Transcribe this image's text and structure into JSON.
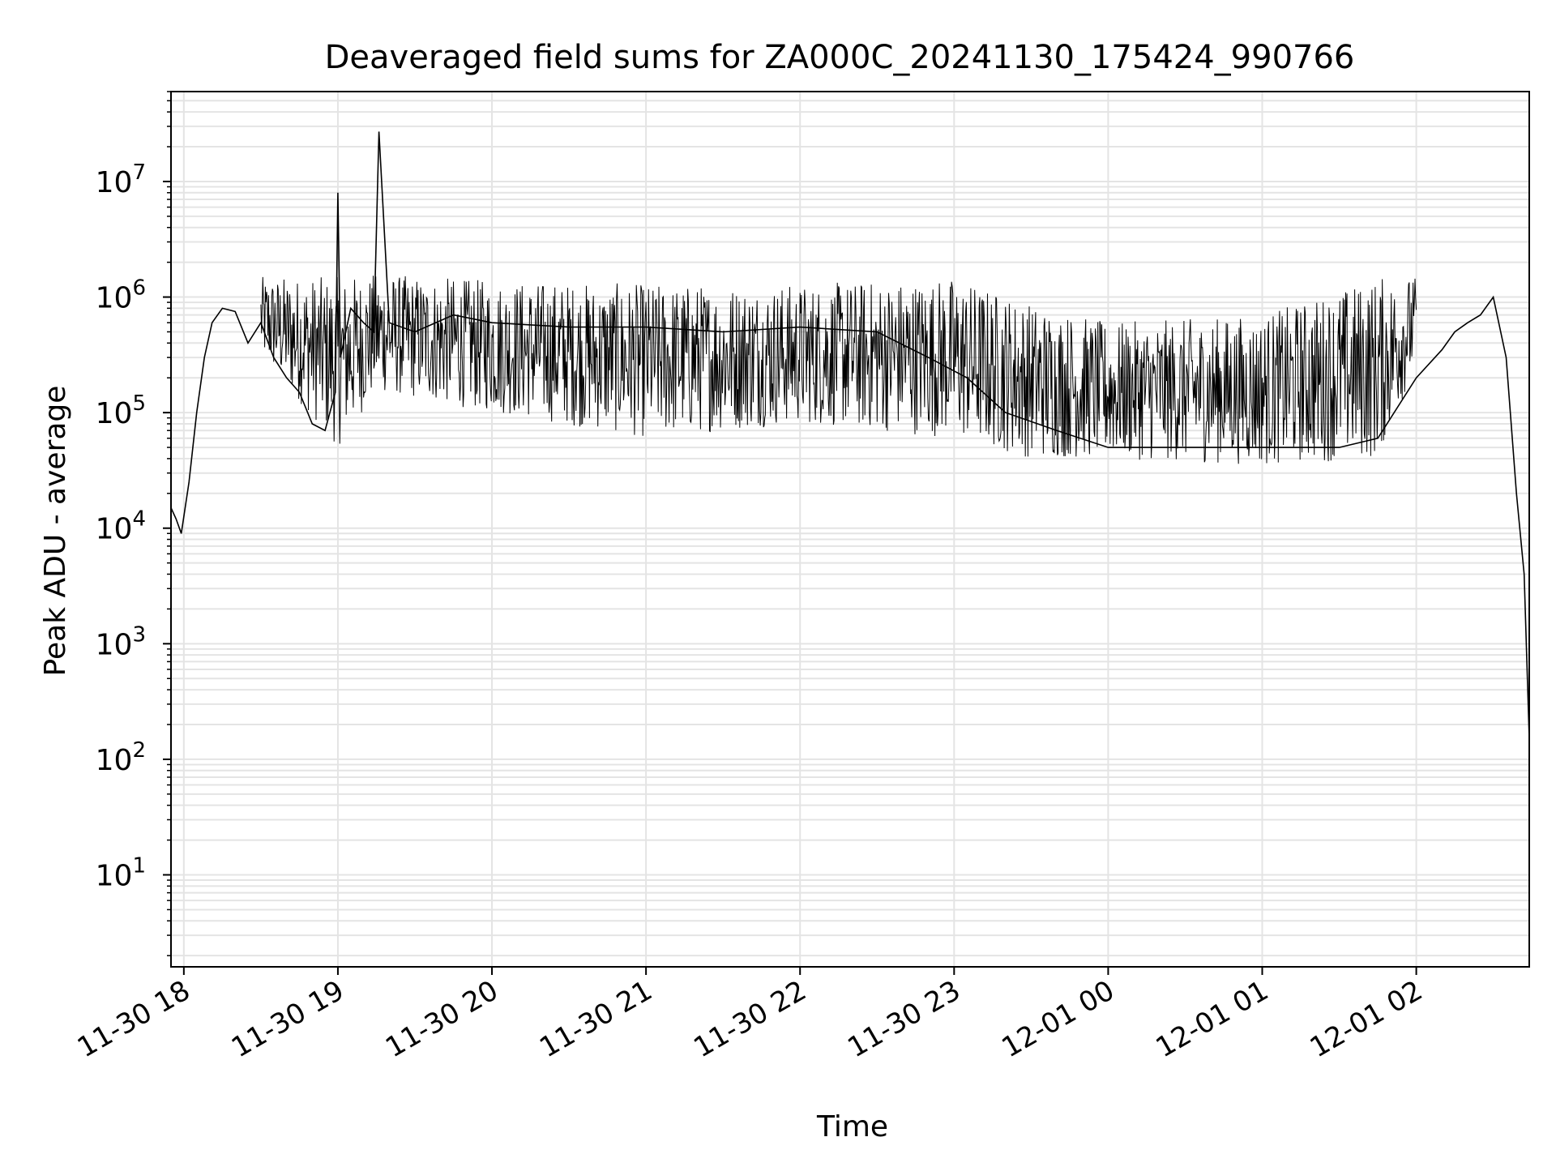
{
  "chart_data": {
    "type": "line",
    "title": "Deaveraged field sums for ZA000C_20241130_175424_990766",
    "xlabel": "Time",
    "ylabel": "Peak ADU - average",
    "yscale": "log",
    "ylim": [
      1.6,
      60000000
    ],
    "xlim": [
      "2024-11-30 17:55",
      "2024-12-01 02:44"
    ],
    "x_ticks": [
      {
        "t": "2024-11-30 18:00",
        "label": "11-30 18"
      },
      {
        "t": "2024-11-30 19:00",
        "label": "11-30 19"
      },
      {
        "t": "2024-11-30 20:00",
        "label": "11-30 20"
      },
      {
        "t": "2024-11-30 21:00",
        "label": "11-30 21"
      },
      {
        "t": "2024-11-30 22:00",
        "label": "11-30 22"
      },
      {
        "t": "2024-11-30 23:00",
        "label": "11-30 23"
      },
      {
        "t": "2024-12-01 00:00",
        "label": "12-01 00"
      },
      {
        "t": "2024-12-01 01:00",
        "label": "12-01 01"
      },
      {
        "t": "2024-12-01 02:00",
        "label": "12-01 02"
      }
    ],
    "y_ticks": [
      {
        "value": 10,
        "label": "10",
        "exp": "1"
      },
      {
        "value": 100,
        "label": "10",
        "exp": "2"
      },
      {
        "value": 1000,
        "label": "10",
        "exp": "3"
      },
      {
        "value": 10000,
        "label": "10",
        "exp": "4"
      },
      {
        "value": 100000,
        "label": "10",
        "exp": "5"
      },
      {
        "value": 1000000,
        "label": "10",
        "exp": "6"
      },
      {
        "value": 10000000,
        "label": "10",
        "exp": "7"
      }
    ],
    "grid": true,
    "series": [
      {
        "color": "#000000",
        "x": [
          "2024-11-30 17:55",
          "2024-11-30 17:57",
          "2024-11-30 17:59",
          "2024-11-30 18:02",
          "2024-11-30 18:05",
          "2024-11-30 18:08",
          "2024-11-30 18:11",
          "2024-11-30 18:15",
          "2024-11-30 18:20",
          "2024-11-30 18:25",
          "2024-11-30 18:30",
          "2024-11-30 18:35",
          "2024-11-30 18:40",
          "2024-11-30 18:45",
          "2024-11-30 18:50",
          "2024-11-30 18:55",
          "2024-11-30 18:59",
          "2024-11-30 19:00",
          "2024-11-30 19:01",
          "2024-11-30 19:05",
          "2024-11-30 19:10",
          "2024-11-30 19:14",
          "2024-11-30 19:16",
          "2024-11-30 19:20",
          "2024-11-30 19:30",
          "2024-11-30 19:45",
          "2024-11-30 20:00",
          "2024-11-30 20:30",
          "2024-11-30 21:00",
          "2024-11-30 21:30",
          "2024-11-30 22:00",
          "2024-11-30 22:30",
          "2024-11-30 22:50",
          "2024-11-30 23:05",
          "2024-11-30 23:20",
          "2024-11-30 23:40",
          "2024-12-01 00:00",
          "2024-12-01 00:30",
          "2024-12-01 01:00",
          "2024-12-01 01:30",
          "2024-12-01 01:45",
          "2024-12-01 02:00",
          "2024-12-01 02:10",
          "2024-12-01 02:15",
          "2024-12-01 02:20",
          "2024-12-01 02:25",
          "2024-12-01 02:30",
          "2024-12-01 02:35",
          "2024-12-01 02:39",
          "2024-12-01 02:42",
          "2024-12-01 02:44"
        ],
        "y": [
          15000,
          12000,
          9000,
          25000,
          100000,
          300000,
          600000,
          800000,
          750000,
          400000,
          600000,
          300000,
          200000,
          150000,
          80000,
          70000,
          150000,
          8000000,
          300000,
          800000,
          600000,
          500000,
          27000000,
          600000,
          500000,
          700000,
          600000,
          550000,
          550000,
          500000,
          550000,
          500000,
          300000,
          200000,
          100000,
          70000,
          50000,
          50000,
          50000,
          50000,
          60000,
          200000,
          350000,
          500000,
          600000,
          700000,
          1000000,
          300000,
          20000,
          4000,
          150
        ]
      }
    ],
    "envelope": {
      "x": [
        "2024-11-30 18:30",
        "2024-11-30 19:00",
        "2024-11-30 19:15",
        "2024-11-30 20:00",
        "2024-11-30 21:00",
        "2024-11-30 22:00",
        "2024-11-30 23:00",
        "2024-11-30 23:30",
        "2024-12-01 00:00",
        "2024-12-01 01:00",
        "2024-12-01 01:45",
        "2024-12-01 02:00"
      ],
      "low": [
        300000,
        50000,
        150000,
        100000,
        60000,
        80000,
        60000,
        40000,
        40000,
        35000,
        40000,
        250000
      ],
      "high": [
        1500000,
        1500000,
        1600000,
        1400000,
        1300000,
        1300000,
        1500000,
        900000,
        600000,
        700000,
        1500000,
        1500000
      ]
    }
  }
}
